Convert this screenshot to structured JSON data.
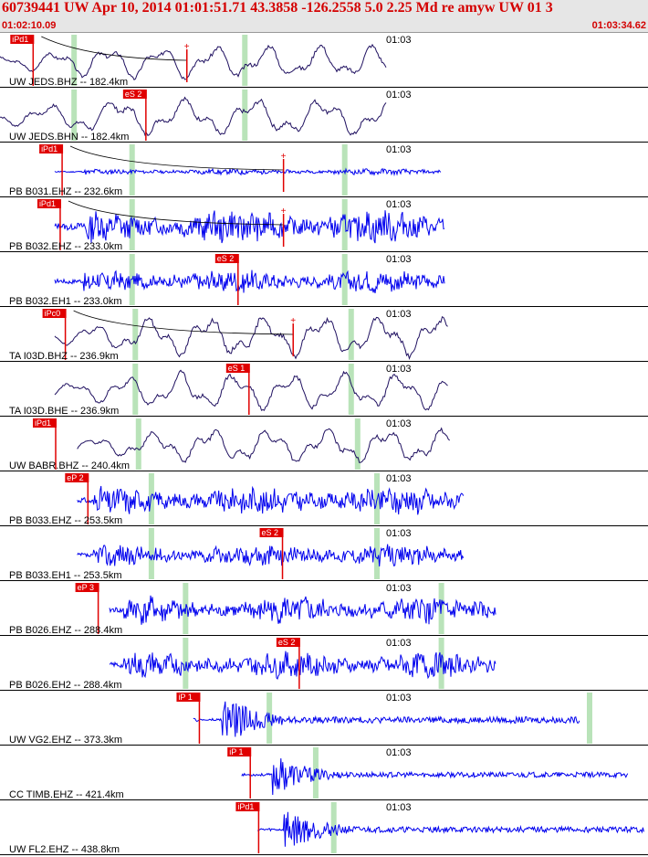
{
  "header": {
    "title": "60739441 UW Apr 10, 2014 01:01:51.71    43.3858 -126.2558  5.0 2.25 Md re amyw UW 01   3",
    "start_time": "01:02:10.09",
    "end_time": "01:03:34.62"
  },
  "colors": {
    "header_text": "#d40000",
    "broadband": "#1f1060",
    "short_period": "#0000ee",
    "pick": "#e00000",
    "marker": "#b9e3b9"
  },
  "traces": [
    {
      "label": "UW JEDS.BHZ -- 182.4km",
      "tick": "01:03",
      "pick": "iPd1",
      "kind": "bb",
      "style": "lowfreq",
      "seed": 3,
      "start": 0.0,
      "end": 0.6,
      "onset": 0.05,
      "green": [
        0.115,
        0.38
      ],
      "pick_x": 0.05,
      "amp": 0.5,
      "curve": true,
      "cross": 0.29
    },
    {
      "label": "UW JEDS.BHN -- 182.4km",
      "tick": "01:03",
      "pick": "eS 2",
      "kind": "bb",
      "style": "lowfreq",
      "seed": 7,
      "start": 0.0,
      "end": 0.6,
      "onset": 0.05,
      "green": [
        0.115,
        0.38
      ],
      "pick_x": 0.225,
      "amp": 0.55,
      "curve": false,
      "cross": null
    },
    {
      "label": "PB B031.EHZ -- 232.6km",
      "tick": "01:03",
      "pick": "iPd1",
      "kind": "sp",
      "style": "noise",
      "seed": 11,
      "start": 0.085,
      "end": 0.685,
      "onset": 0.13,
      "green": [
        0.205,
        0.535
      ],
      "pick_x": 0.095,
      "amp": 0.12,
      "curve": true,
      "cross": 0.44
    },
    {
      "label": "PB B032.EHZ -- 233.0km",
      "tick": "01:03",
      "pick": "iPd1",
      "kind": "sp",
      "style": "noise",
      "seed": 13,
      "start": 0.085,
      "end": 0.69,
      "onset": 0.13,
      "green": [
        0.205,
        0.535
      ],
      "pick_x": 0.092,
      "amp": 0.65,
      "curve": true,
      "cross": 0.44
    },
    {
      "label": "PB B032.EH1 -- 233.0km",
      "tick": "01:03",
      "pick": "eS 2",
      "kind": "sp",
      "style": "noise",
      "seed": 17,
      "start": 0.085,
      "end": 0.69,
      "onset": 0.13,
      "green": [
        0.205,
        0.535
      ],
      "pick_x": 0.368,
      "amp": 0.45,
      "curve": false,
      "cross": null
    },
    {
      "label": "TA I03D.BHZ -- 236.9km",
      "tick": "01:03",
      "pick": "iPc0",
      "kind": "bb",
      "style": "lowfreq",
      "seed": 19,
      "start": 0.085,
      "end": 0.695,
      "onset": 0.13,
      "green": [
        0.21,
        0.545
      ],
      "pick_x": 0.1,
      "amp": 0.6,
      "curve": true,
      "cross": 0.455
    },
    {
      "label": "TA I03D.BHE -- 236.9km",
      "tick": "01:03",
      "pick": "eS 1",
      "kind": "bb",
      "style": "lowfreq",
      "seed": 23,
      "start": 0.085,
      "end": 0.695,
      "onset": 0.13,
      "green": [
        0.21,
        0.545
      ],
      "pick_x": 0.385,
      "amp": 0.55,
      "curve": false,
      "cross": null
    },
    {
      "label": "UW BABR.BHZ -- 240.4km",
      "tick": "01:03",
      "pick": "iPd1",
      "kind": "bb",
      "style": "lowfreq",
      "seed": 29,
      "start": 0.12,
      "end": 0.7,
      "onset": 0.13,
      "green": [
        0.215,
        0.555
      ],
      "pick_x": 0.085,
      "amp": 0.5,
      "curve": false,
      "cross": null
    },
    {
      "label": "PB B033.EHZ -- 253.5km",
      "tick": "01:03",
      "pick": "eP 2",
      "kind": "sp",
      "style": "noise",
      "seed": 31,
      "start": 0.12,
      "end": 0.72,
      "onset": 0.145,
      "green": [
        0.235,
        0.585
      ],
      "pick_x": 0.135,
      "amp": 0.55,
      "curve": false,
      "cross": null
    },
    {
      "label": "PB B033.EH1 -- 253.5km",
      "tick": "01:03",
      "pick": "eS 2",
      "kind": "sp",
      "style": "noise",
      "seed": 37,
      "start": 0.12,
      "end": 0.72,
      "onset": 0.145,
      "green": [
        0.235,
        0.585
      ],
      "pick_x": 0.437,
      "amp": 0.45,
      "curve": false,
      "cross": null
    },
    {
      "label": "PB B026.EHZ -- 288.4km",
      "tick": "01:03",
      "pick": "eP 3",
      "kind": "sp",
      "style": "noise",
      "seed": 41,
      "start": 0.17,
      "end": 0.77,
      "onset": 0.19,
      "green": [
        0.288,
        0.685
      ],
      "pick_x": 0.151,
      "amp": 0.55,
      "curve": false,
      "cross": null
    },
    {
      "label": "PB B026.EH2 -- 288.4km",
      "tick": "01:03",
      "pick": "eS 2",
      "kind": "sp",
      "style": "noise",
      "seed": 43,
      "start": 0.17,
      "end": 0.77,
      "onset": 0.19,
      "green": [
        0.288,
        0.685
      ],
      "pick_x": 0.463,
      "amp": 0.5,
      "curve": false,
      "cross": null
    },
    {
      "label": "UW VG2.EHZ -- 373.3km",
      "tick": "01:03",
      "pick": "iP 1",
      "kind": "sp",
      "style": "quake",
      "seed": 47,
      "start": 0.3,
      "end": 0.9,
      "onset": 0.345,
      "green": [
        0.418,
        0.915
      ],
      "pick_x": 0.308,
      "amp": 0.55,
      "curve": false,
      "cross": null
    },
    {
      "label": "CC TIMB.EHZ -- 421.4km",
      "tick": "01:03",
      "pick": "iP 1",
      "kind": "sp",
      "style": "quake",
      "seed": 53,
      "start": 0.375,
      "end": 0.975,
      "onset": 0.423,
      "green": [
        0.49
      ],
      "pick_x": 0.387,
      "amp": 0.45,
      "curve": false,
      "cross": null
    },
    {
      "label": "UW FL2.EHZ -- 438.8km",
      "tick": "01:03",
      "pick": "iPd1",
      "kind": "sp",
      "style": "quake",
      "seed": 59,
      "start": 0.4,
      "end": 1.0,
      "onset": 0.44,
      "green": [
        0.518
      ],
      "pick_x": 0.4,
      "amp": 0.5,
      "curve": false,
      "cross": null
    }
  ]
}
